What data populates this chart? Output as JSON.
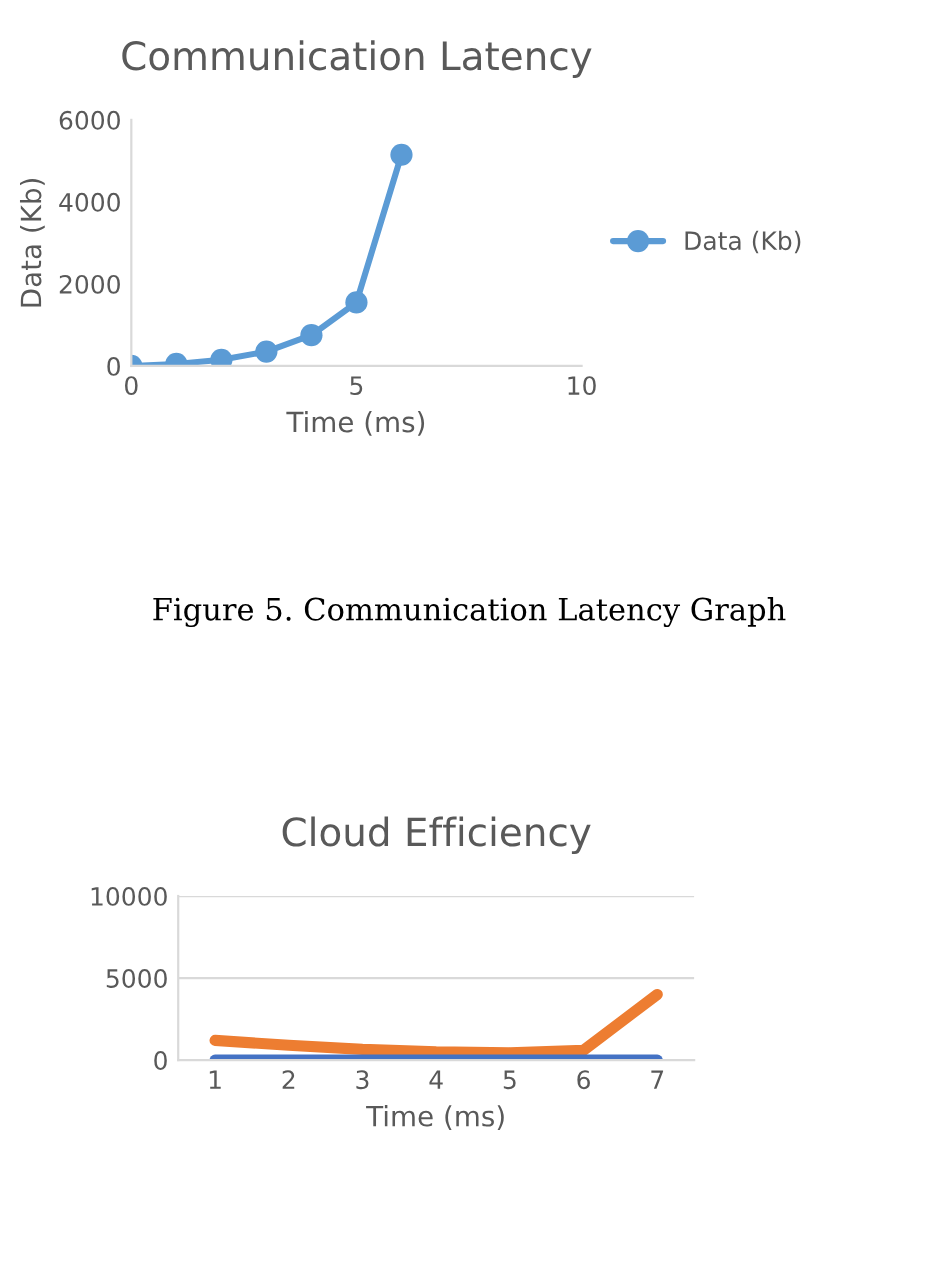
{
  "chart_data": [
    {
      "type": "line",
      "title": "Communication Latency",
      "xlabel": "Time (ms)",
      "ylabel": "Data (Kb)",
      "x": [
        0,
        1,
        2,
        3,
        4,
        5,
        6
      ],
      "series": [
        {
          "name": "Data (Kb)",
          "color": "#5b9bd5",
          "values": [
            0,
            50,
            150,
            350,
            750,
            1550,
            5150
          ]
        }
      ],
      "xlim": [
        0,
        10
      ],
      "xticks": [
        0,
        5,
        10
      ],
      "ylim": [
        0,
        6000
      ],
      "yticks": [
        0,
        2000,
        4000,
        6000
      ],
      "marker": "circle",
      "legend": "right",
      "grid": false,
      "annotations": [
        "Figure 5. Communication Latency Graph"
      ]
    },
    {
      "type": "line",
      "title": "Cloud Efficiency",
      "xlabel": "Time (ms)",
      "categories": [
        "1",
        "2",
        "3",
        "4",
        "5",
        "6",
        "7"
      ],
      "series": [
        {
          "color": "#ed7d31",
          "values": [
            1200,
            900,
            650,
            500,
            450,
            600,
            4000
          ]
        },
        {
          "color": "#4472c4",
          "values": [
            0,
            0,
            0,
            0,
            0,
            0,
            0
          ]
        }
      ],
      "ylim": [
        0,
        10000
      ],
      "yticks": [
        0,
        5000,
        10000
      ],
      "grid": "y"
    }
  ]
}
